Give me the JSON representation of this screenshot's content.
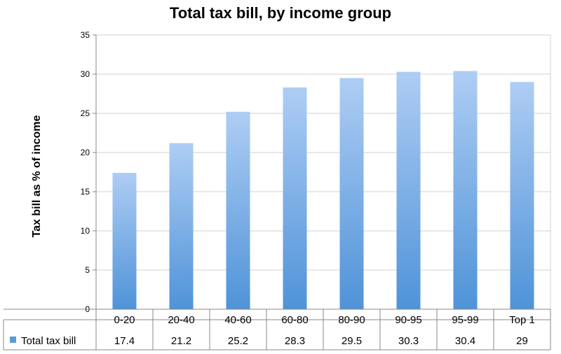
{
  "chart_data": {
    "type": "bar",
    "title": "Total tax bill, by income group",
    "ylabel": "Tax bill as % of income",
    "xlabel": "",
    "categories": [
      "0-20",
      "20-40",
      "40-60",
      "60-80",
      "80-90",
      "90-95",
      "95-99",
      "Top 1"
    ],
    "series": [
      {
        "name": "Total tax bill",
        "values": [
          17.4,
          21.2,
          25.2,
          28.3,
          29.5,
          30.3,
          30.4,
          29
        ],
        "value_labels": [
          "17.4",
          "21.2",
          "25.2",
          "28.3",
          "29.5",
          "30.3",
          "30.4",
          "29"
        ]
      }
    ],
    "ylim": [
      0,
      35
    ],
    "yticks": [
      0,
      5,
      10,
      15,
      20,
      25,
      30,
      35
    ],
    "grid": true,
    "legend": "data-table",
    "colors": {
      "bar_top": "#aecdf4",
      "bar_bottom": "#4f93d8",
      "legend_swatch": "#5b9bd5",
      "grid": "#d0d0d0",
      "axis": "#888888"
    }
  }
}
